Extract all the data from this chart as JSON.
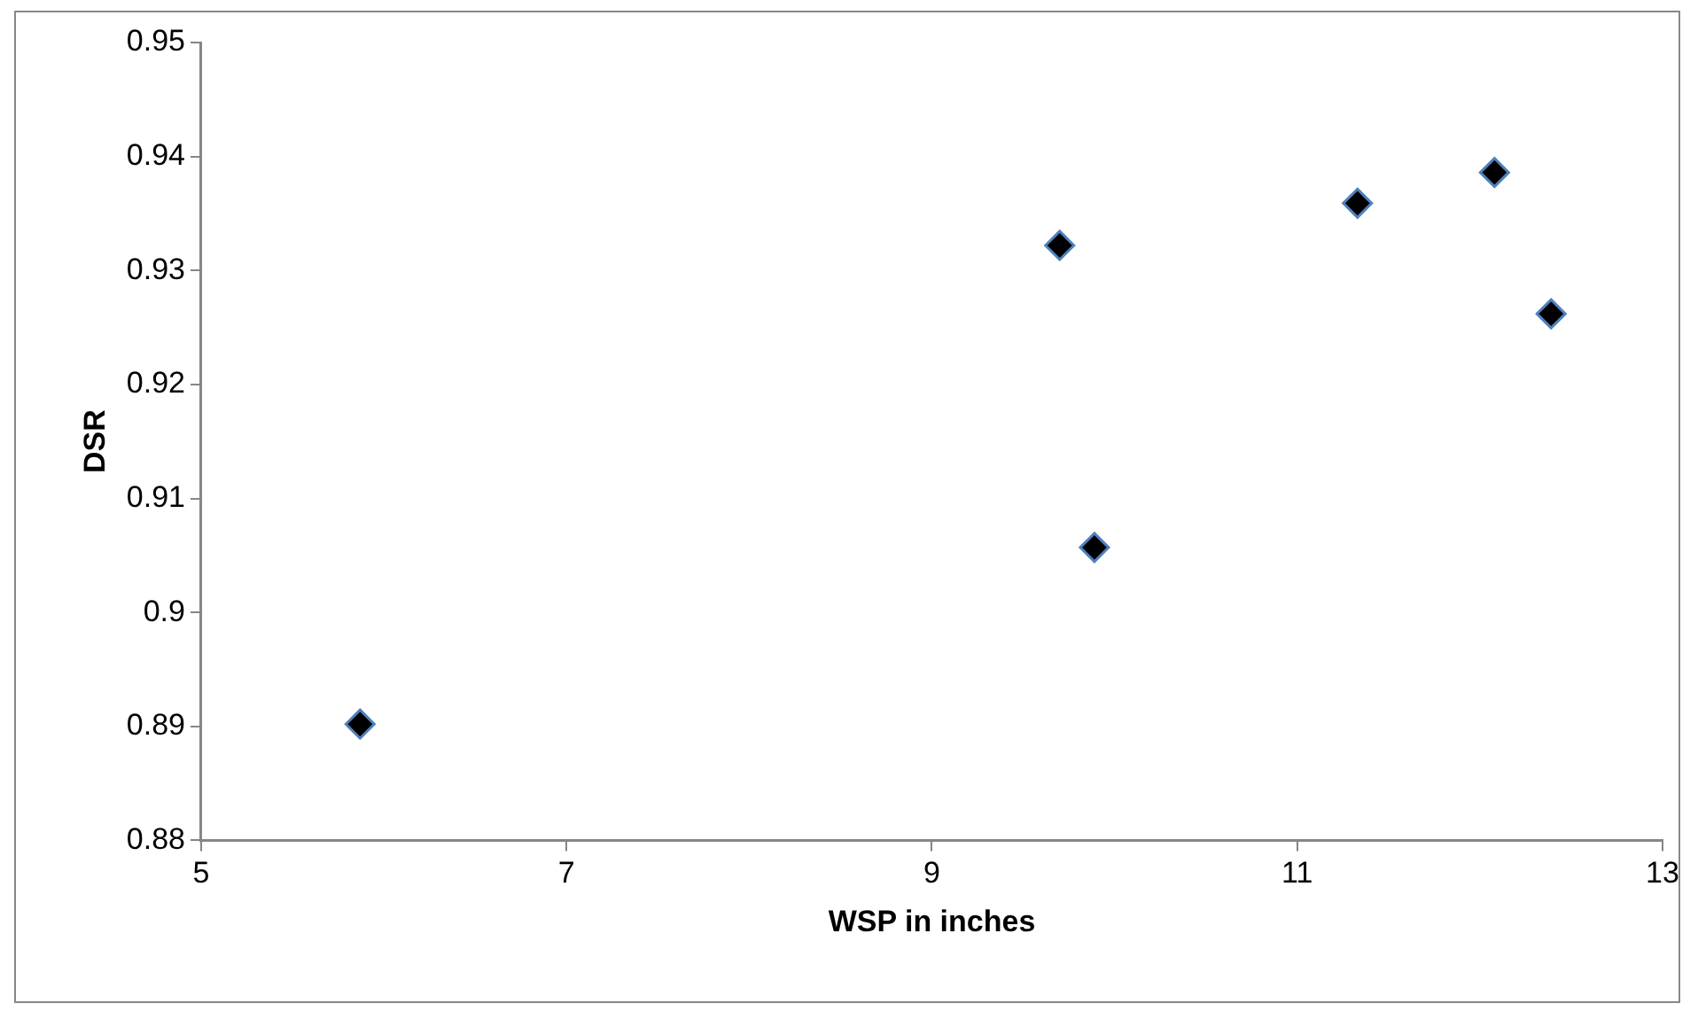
{
  "chart_data": {
    "type": "scatter",
    "xlabel": "WSP in inches",
    "ylabel": "DSR",
    "x": [
      5.87,
      9.7,
      9.89,
      11.33,
      12.08,
      12.39
    ],
    "series": [
      {
        "color": "#000000",
        "values": [
          0.8902,
          0.9322,
          0.9057,
          0.9359,
          0.9386,
          0.9262
        ]
      }
    ],
    "xlim": [
      5,
      13
    ],
    "xticks": [
      5,
      7,
      9,
      11,
      13
    ],
    "ylim": [
      0.88,
      0.95
    ],
    "yticks": [
      0.88,
      0.89,
      0.9,
      0.91,
      0.92,
      0.93,
      0.94,
      0.95
    ],
    "marker": "diamond",
    "grid": false,
    "legend": false
  }
}
